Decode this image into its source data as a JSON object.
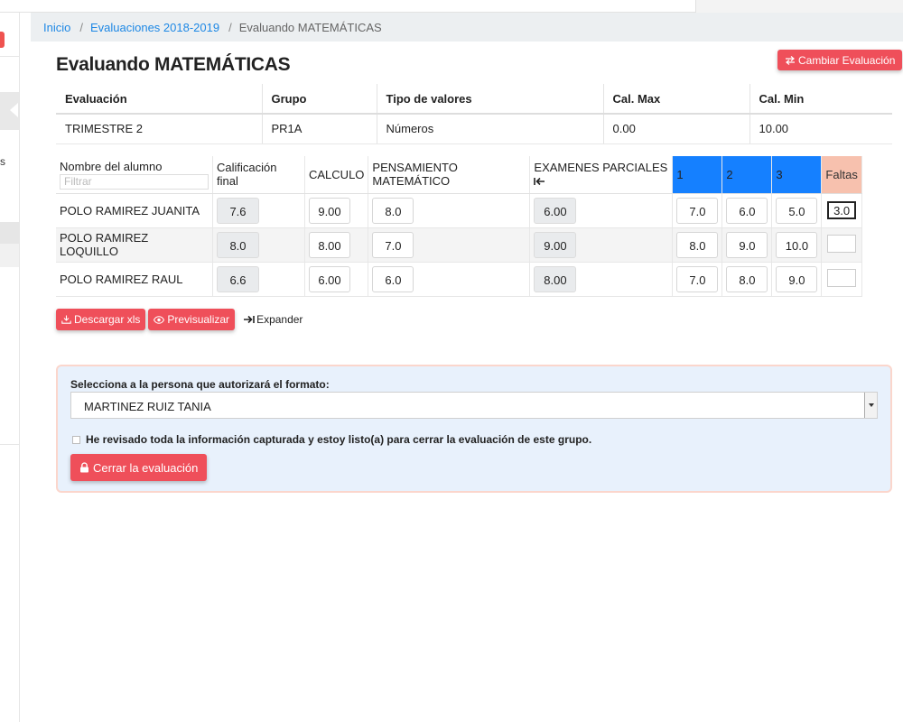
{
  "breadcrumb": {
    "home": "Inicio",
    "section": "Evaluaciones 2018-2019",
    "current": "Evaluando MATEMÁTICAS"
  },
  "sidebar": {
    "partial_text": "s"
  },
  "title": "Evaluando MATEMÁTICAS",
  "change_button": "Cambiar Evaluación",
  "info": {
    "headers": [
      "Evaluación",
      "Grupo",
      "Tipo de valores",
      "Cal. Max",
      "Cal. Min"
    ],
    "values": [
      "TRIMESTRE 2",
      "PR1A",
      "Números",
      "0.00",
      "10.00"
    ]
  },
  "grades": {
    "headers": {
      "name": "Nombre del alumno",
      "filter_placeholder": "Filtrar",
      "final": "Calificación final",
      "calculo": "CALCULO",
      "pensamiento": "PENSAMIENTO MATEMÁTICO",
      "examenes": "EXAMENES PARCIALES",
      "p1": "1",
      "p2": "2",
      "p3": "3",
      "faltas": "Faltas"
    },
    "rows": [
      {
        "name": "POLO RAMIREZ JUANITA",
        "final": "7.6",
        "calculo": "9.00",
        "pensamiento": "8.0",
        "examenes": "6.00",
        "p1": "7.0",
        "p2": "6.0",
        "p3": "5.0",
        "faltas": "3.0"
      },
      {
        "name": "POLO RAMIREZ LOQUILLO",
        "final": "8.0",
        "calculo": "8.00",
        "pensamiento": "7.0",
        "examenes": "9.00",
        "p1": "8.0",
        "p2": "9.0",
        "p3": "10.0",
        "faltas": ""
      },
      {
        "name": "POLO RAMIREZ RAUL",
        "final": "6.6",
        "calculo": "6.00",
        "pensamiento": "6.0",
        "examenes": "8.00",
        "p1": "7.0",
        "p2": "8.0",
        "p3": "9.0",
        "faltas": ""
      }
    ]
  },
  "actions": {
    "download": "Descargar xls",
    "preview": "Previsualizar",
    "expand": "Expander"
  },
  "authorize": {
    "label": "Selecciona a la persona que autorizará el formato:",
    "selected": "MARTINEZ RUIZ TANIA",
    "checkbox_label": "He revisado toda la información capturada y estoy listo(a) para cerrar la evaluación de este grupo.",
    "close_button": "Cerrar la evaluación"
  },
  "colors": {
    "accent_red": "#ef4f5a",
    "partial_blue": "#1580ff",
    "faltas_pink": "#f7c1ae",
    "panel_bg": "#e8f1fc"
  }
}
